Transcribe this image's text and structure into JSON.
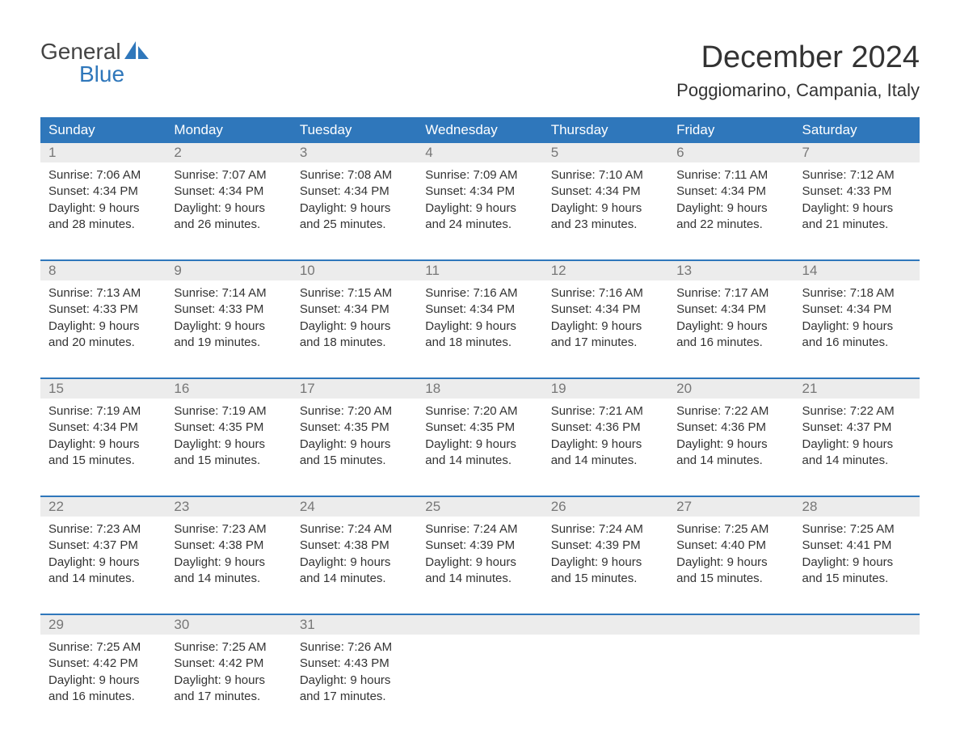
{
  "logo": {
    "word1": "General",
    "word2": "Blue",
    "word1_color": "#444444",
    "word2_color": "#2f77bb",
    "sail_color": "#2f77bb"
  },
  "title": "December 2024",
  "location": "Poggiomarino, Campania, Italy",
  "colors": {
    "header_bg": "#2f77bb",
    "header_text": "#ffffff",
    "daynum_bg": "#ececec",
    "daynum_text": "#777777",
    "body_text": "#333333",
    "week_divider": "#2f77bb",
    "page_bg": "#ffffff"
  },
  "day_headers": [
    "Sunday",
    "Monday",
    "Tuesday",
    "Wednesday",
    "Thursday",
    "Friday",
    "Saturday"
  ],
  "weeks": [
    [
      {
        "n": "1",
        "sr": "Sunrise: 7:06 AM",
        "ss": "Sunset: 4:34 PM",
        "d1": "Daylight: 9 hours",
        "d2": "and 28 minutes."
      },
      {
        "n": "2",
        "sr": "Sunrise: 7:07 AM",
        "ss": "Sunset: 4:34 PM",
        "d1": "Daylight: 9 hours",
        "d2": "and 26 minutes."
      },
      {
        "n": "3",
        "sr": "Sunrise: 7:08 AM",
        "ss": "Sunset: 4:34 PM",
        "d1": "Daylight: 9 hours",
        "d2": "and 25 minutes."
      },
      {
        "n": "4",
        "sr": "Sunrise: 7:09 AM",
        "ss": "Sunset: 4:34 PM",
        "d1": "Daylight: 9 hours",
        "d2": "and 24 minutes."
      },
      {
        "n": "5",
        "sr": "Sunrise: 7:10 AM",
        "ss": "Sunset: 4:34 PM",
        "d1": "Daylight: 9 hours",
        "d2": "and 23 minutes."
      },
      {
        "n": "6",
        "sr": "Sunrise: 7:11 AM",
        "ss": "Sunset: 4:34 PM",
        "d1": "Daylight: 9 hours",
        "d2": "and 22 minutes."
      },
      {
        "n": "7",
        "sr": "Sunrise: 7:12 AM",
        "ss": "Sunset: 4:33 PM",
        "d1": "Daylight: 9 hours",
        "d2": "and 21 minutes."
      }
    ],
    [
      {
        "n": "8",
        "sr": "Sunrise: 7:13 AM",
        "ss": "Sunset: 4:33 PM",
        "d1": "Daylight: 9 hours",
        "d2": "and 20 minutes."
      },
      {
        "n": "9",
        "sr": "Sunrise: 7:14 AM",
        "ss": "Sunset: 4:33 PM",
        "d1": "Daylight: 9 hours",
        "d2": "and 19 minutes."
      },
      {
        "n": "10",
        "sr": "Sunrise: 7:15 AM",
        "ss": "Sunset: 4:34 PM",
        "d1": "Daylight: 9 hours",
        "d2": "and 18 minutes."
      },
      {
        "n": "11",
        "sr": "Sunrise: 7:16 AM",
        "ss": "Sunset: 4:34 PM",
        "d1": "Daylight: 9 hours",
        "d2": "and 18 minutes."
      },
      {
        "n": "12",
        "sr": "Sunrise: 7:16 AM",
        "ss": "Sunset: 4:34 PM",
        "d1": "Daylight: 9 hours",
        "d2": "and 17 minutes."
      },
      {
        "n": "13",
        "sr": "Sunrise: 7:17 AM",
        "ss": "Sunset: 4:34 PM",
        "d1": "Daylight: 9 hours",
        "d2": "and 16 minutes."
      },
      {
        "n": "14",
        "sr": "Sunrise: 7:18 AM",
        "ss": "Sunset: 4:34 PM",
        "d1": "Daylight: 9 hours",
        "d2": "and 16 minutes."
      }
    ],
    [
      {
        "n": "15",
        "sr": "Sunrise: 7:19 AM",
        "ss": "Sunset: 4:34 PM",
        "d1": "Daylight: 9 hours",
        "d2": "and 15 minutes."
      },
      {
        "n": "16",
        "sr": "Sunrise: 7:19 AM",
        "ss": "Sunset: 4:35 PM",
        "d1": "Daylight: 9 hours",
        "d2": "and 15 minutes."
      },
      {
        "n": "17",
        "sr": "Sunrise: 7:20 AM",
        "ss": "Sunset: 4:35 PM",
        "d1": "Daylight: 9 hours",
        "d2": "and 15 minutes."
      },
      {
        "n": "18",
        "sr": "Sunrise: 7:20 AM",
        "ss": "Sunset: 4:35 PM",
        "d1": "Daylight: 9 hours",
        "d2": "and 14 minutes."
      },
      {
        "n": "19",
        "sr": "Sunrise: 7:21 AM",
        "ss": "Sunset: 4:36 PM",
        "d1": "Daylight: 9 hours",
        "d2": "and 14 minutes."
      },
      {
        "n": "20",
        "sr": "Sunrise: 7:22 AM",
        "ss": "Sunset: 4:36 PM",
        "d1": "Daylight: 9 hours",
        "d2": "and 14 minutes."
      },
      {
        "n": "21",
        "sr": "Sunrise: 7:22 AM",
        "ss": "Sunset: 4:37 PM",
        "d1": "Daylight: 9 hours",
        "d2": "and 14 minutes."
      }
    ],
    [
      {
        "n": "22",
        "sr": "Sunrise: 7:23 AM",
        "ss": "Sunset: 4:37 PM",
        "d1": "Daylight: 9 hours",
        "d2": "and 14 minutes."
      },
      {
        "n": "23",
        "sr": "Sunrise: 7:23 AM",
        "ss": "Sunset: 4:38 PM",
        "d1": "Daylight: 9 hours",
        "d2": "and 14 minutes."
      },
      {
        "n": "24",
        "sr": "Sunrise: 7:24 AM",
        "ss": "Sunset: 4:38 PM",
        "d1": "Daylight: 9 hours",
        "d2": "and 14 minutes."
      },
      {
        "n": "25",
        "sr": "Sunrise: 7:24 AM",
        "ss": "Sunset: 4:39 PM",
        "d1": "Daylight: 9 hours",
        "d2": "and 14 minutes."
      },
      {
        "n": "26",
        "sr": "Sunrise: 7:24 AM",
        "ss": "Sunset: 4:39 PM",
        "d1": "Daylight: 9 hours",
        "d2": "and 15 minutes."
      },
      {
        "n": "27",
        "sr": "Sunrise: 7:25 AM",
        "ss": "Sunset: 4:40 PM",
        "d1": "Daylight: 9 hours",
        "d2": "and 15 minutes."
      },
      {
        "n": "28",
        "sr": "Sunrise: 7:25 AM",
        "ss": "Sunset: 4:41 PM",
        "d1": "Daylight: 9 hours",
        "d2": "and 15 minutes."
      }
    ],
    [
      {
        "n": "29",
        "sr": "Sunrise: 7:25 AM",
        "ss": "Sunset: 4:42 PM",
        "d1": "Daylight: 9 hours",
        "d2": "and 16 minutes."
      },
      {
        "n": "30",
        "sr": "Sunrise: 7:25 AM",
        "ss": "Sunset: 4:42 PM",
        "d1": "Daylight: 9 hours",
        "d2": "and 17 minutes."
      },
      {
        "n": "31",
        "sr": "Sunrise: 7:26 AM",
        "ss": "Sunset: 4:43 PM",
        "d1": "Daylight: 9 hours",
        "d2": "and 17 minutes."
      },
      null,
      null,
      null,
      null
    ]
  ]
}
